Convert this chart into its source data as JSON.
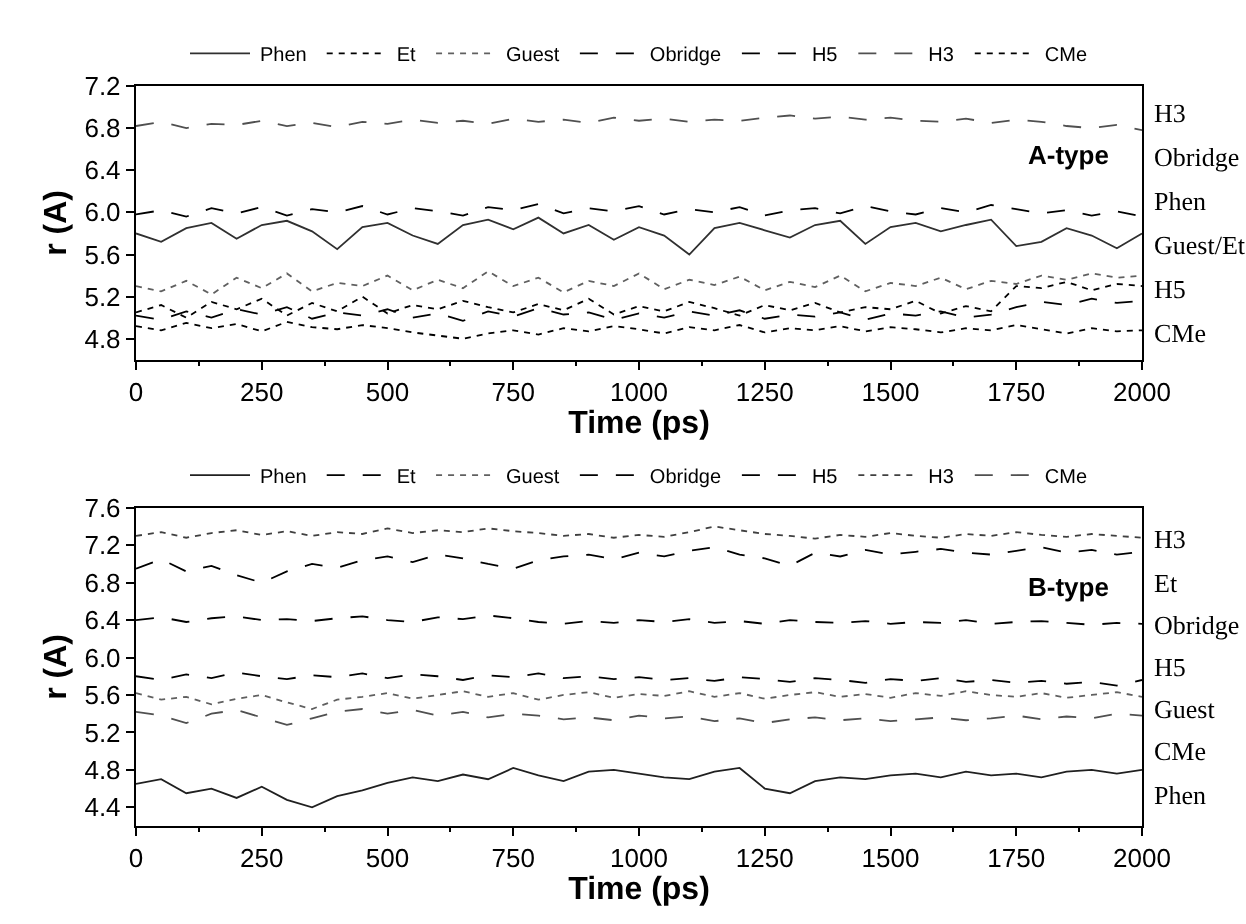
{
  "chart_data": [
    {
      "type": "line",
      "title": "A-type",
      "xlabel": "Time (ps)",
      "ylabel": "r (A)",
      "xlim": [
        0,
        2000
      ],
      "xticks": [
        0,
        250,
        500,
        750,
        1000,
        1250,
        1500,
        1750,
        2000
      ],
      "ylim": [
        4.6,
        7.2
      ],
      "yticks": [
        4.8,
        5.2,
        5.6,
        {
          "value": 6.0,
          "label": "6.0"
        },
        6.4,
        6.8,
        7.2
      ],
      "legend": "top",
      "marker": "none",
      "x": [
        0,
        50,
        100,
        150,
        200,
        250,
        300,
        350,
        400,
        450,
        500,
        550,
        600,
        650,
        700,
        750,
        800,
        850,
        900,
        950,
        1000,
        1050,
        1100,
        1150,
        1200,
        1250,
        1300,
        1350,
        1400,
        1450,
        1500,
        1550,
        1600,
        1650,
        1700,
        1750,
        1800,
        1850,
        1900,
        1950,
        2000
      ],
      "series": [
        {
          "name": "Phen",
          "color": "#303030",
          "line_style": "solid",
          "values": [
            5.8,
            5.72,
            5.85,
            5.9,
            5.75,
            5.88,
            5.92,
            5.82,
            5.65,
            5.86,
            5.9,
            5.78,
            5.7,
            5.88,
            5.93,
            5.84,
            5.95,
            5.8,
            5.88,
            5.74,
            5.86,
            5.78,
            5.6,
            5.85,
            5.9,
            5.83,
            5.76,
            5.88,
            5.92,
            5.7,
            5.86,
            5.9,
            5.82,
            5.88,
            5.93,
            5.68,
            5.72,
            5.85,
            5.78,
            5.66,
            5.8
          ]
        },
        {
          "name": "Et",
          "color": "#000000",
          "line_style": "dotted",
          "values": [
            5.05,
            5.12,
            5.0,
            5.15,
            5.08,
            5.18,
            5.02,
            5.14,
            5.06,
            5.2,
            5.04,
            5.12,
            5.08,
            5.16,
            5.1,
            5.05,
            5.13,
            5.07,
            5.18,
            5.03,
            5.11,
            5.06,
            5.15,
            5.09,
            5.02,
            5.12,
            5.07,
            5.14,
            5.05,
            5.1,
            5.08,
            5.16,
            5.04,
            5.11,
            5.06,
            5.3,
            5.28,
            5.34,
            5.26,
            5.32,
            5.3
          ]
        },
        {
          "name": "Guest",
          "color": "#606060",
          "line_style": "dotted",
          "values": [
            5.3,
            5.25,
            5.35,
            5.22,
            5.38,
            5.28,
            5.42,
            5.25,
            5.33,
            5.3,
            5.4,
            5.26,
            5.36,
            5.28,
            5.44,
            5.3,
            5.38,
            5.24,
            5.35,
            5.3,
            5.42,
            5.27,
            5.36,
            5.31,
            5.39,
            5.26,
            5.34,
            5.29,
            5.4,
            5.25,
            5.33,
            5.3,
            5.38,
            5.27,
            5.35,
            5.32,
            5.4,
            5.36,
            5.42,
            5.38,
            5.4
          ]
        },
        {
          "name": "Obridge",
          "color": "#000000",
          "line_style": "dashed",
          "values": [
            5.98,
            6.02,
            5.96,
            6.04,
            5.99,
            6.05,
            5.97,
            6.03,
            6.0,
            6.06,
            5.98,
            6.04,
            6.01,
            5.97,
            6.05,
            6.02,
            6.08,
            5.99,
            6.04,
            6.01,
            6.06,
            5.98,
            6.03,
            6.0,
            6.05,
            5.97,
            6.02,
            6.04,
            5.99,
            6.06,
            6.01,
            5.98,
            6.04,
            6.0,
            6.07,
            6.03,
            5.99,
            6.02,
            5.97,
            6.01,
            5.96
          ]
        },
        {
          "name": "H5",
          "color": "#000000",
          "line_style": "dashed",
          "values": [
            5.02,
            4.98,
            5.06,
            5.0,
            5.08,
            5.03,
            5.1,
            4.99,
            5.05,
            5.02,
            5.08,
            5.0,
            5.04,
            4.97,
            5.06,
            5.01,
            5.09,
            5.03,
            5.05,
            4.98,
            5.04,
            5.0,
            5.06,
            5.02,
            5.07,
            4.99,
            5.03,
            5.01,
            5.05,
            4.98,
            5.04,
            5.02,
            5.06,
            5.0,
            5.03,
            5.1,
            5.15,
            5.12,
            5.18,
            5.14,
            5.16
          ]
        },
        {
          "name": "H3",
          "color": "#505050",
          "line_style": "dashed",
          "values": [
            6.82,
            6.86,
            6.8,
            6.84,
            6.83,
            6.87,
            6.82,
            6.85,
            6.81,
            6.86,
            6.84,
            6.88,
            6.85,
            6.87,
            6.84,
            6.89,
            6.86,
            6.88,
            6.85,
            6.9,
            6.87,
            6.89,
            6.86,
            6.88,
            6.87,
            6.9,
            6.92,
            6.89,
            6.91,
            6.88,
            6.9,
            6.87,
            6.86,
            6.89,
            6.85,
            6.88,
            6.86,
            6.82,
            6.8,
            6.83,
            6.78
          ]
        },
        {
          "name": "CMe",
          "color": "#000000",
          "line_style": "dotted",
          "values": [
            4.92,
            4.88,
            4.95,
            4.9,
            4.94,
            4.87,
            4.96,
            4.91,
            4.89,
            4.93,
            4.9,
            4.86,
            4.83,
            4.8,
            4.85,
            4.88,
            4.84,
            4.9,
            4.87,
            4.92,
            4.89,
            4.85,
            4.91,
            4.88,
            4.93,
            4.86,
            4.9,
            4.88,
            4.92,
            4.87,
            4.91,
            4.89,
            4.86,
            4.9,
            4.88,
            4.93,
            4.89,
            4.85,
            4.9,
            4.87,
            4.88
          ]
        }
      ],
      "annotations": [
        "H3",
        "Obridge",
        "Phen",
        "Guest/Et",
        "H5",
        "CMe"
      ]
    },
    {
      "type": "line",
      "title": "B-type",
      "xlabel": "Time (ps)",
      "ylabel": "r (A)",
      "xlim": [
        0,
        2000
      ],
      "xticks": [
        0,
        250,
        500,
        750,
        1000,
        1250,
        1500,
        1750,
        2000
      ],
      "ylim": [
        4.2,
        7.6
      ],
      "yticks": [
        4.4,
        4.8,
        5.2,
        5.6,
        {
          "value": 6.0,
          "label": "6.0"
        },
        6.4,
        6.8,
        7.2,
        7.6
      ],
      "legend": "top",
      "marker": "none",
      "x": [
        0,
        50,
        100,
        150,
        200,
        250,
        300,
        350,
        400,
        450,
        500,
        550,
        600,
        650,
        700,
        750,
        800,
        850,
        900,
        950,
        1000,
        1050,
        1100,
        1150,
        1200,
        1250,
        1300,
        1350,
        1400,
        1450,
        1500,
        1550,
        1600,
        1650,
        1700,
        1750,
        1800,
        1850,
        1900,
        1950,
        2000
      ],
      "series": [
        {
          "name": "Phen",
          "color": "#202020",
          "line_style": "solid",
          "values": [
            4.65,
            4.7,
            4.55,
            4.6,
            4.5,
            4.62,
            4.48,
            4.4,
            4.52,
            4.58,
            4.66,
            4.72,
            4.68,
            4.75,
            4.7,
            4.82,
            4.74,
            4.68,
            4.78,
            4.8,
            4.76,
            4.72,
            4.7,
            4.78,
            4.82,
            4.6,
            4.55,
            4.68,
            4.72,
            4.7,
            4.74,
            4.76,
            4.72,
            4.78,
            4.74,
            4.76,
            4.72,
            4.78,
            4.8,
            4.76,
            4.8
          ]
        },
        {
          "name": "Et",
          "color": "#000000",
          "line_style": "dashed",
          "values": [
            6.95,
            7.05,
            6.92,
            6.98,
            6.88,
            6.8,
            6.92,
            7.0,
            6.96,
            7.04,
            7.08,
            7.02,
            7.1,
            7.06,
            7.0,
            6.95,
            7.04,
            7.08,
            7.1,
            7.05,
            7.12,
            7.08,
            7.14,
            7.18,
            7.1,
            7.06,
            6.98,
            7.12,
            7.08,
            7.15,
            7.1,
            7.13,
            7.16,
            7.12,
            7.1,
            7.14,
            7.18,
            7.12,
            7.15,
            7.1,
            7.13
          ]
        },
        {
          "name": "Guest",
          "color": "#606060",
          "line_style": "dotted",
          "values": [
            5.62,
            5.55,
            5.58,
            5.5,
            5.56,
            5.6,
            5.52,
            5.45,
            5.55,
            5.58,
            5.62,
            5.56,
            5.6,
            5.64,
            5.58,
            5.62,
            5.55,
            5.6,
            5.63,
            5.57,
            5.61,
            5.59,
            5.64,
            5.58,
            5.62,
            5.56,
            5.6,
            5.63,
            5.58,
            5.61,
            5.57,
            5.62,
            5.59,
            5.64,
            5.6,
            5.58,
            5.62,
            5.57,
            5.6,
            5.63,
            5.58
          ]
        },
        {
          "name": "Obridge",
          "color": "#000000",
          "line_style": "dashed",
          "values": [
            6.4,
            6.43,
            6.38,
            6.42,
            6.44,
            6.4,
            6.41,
            6.39,
            6.42,
            6.44,
            6.4,
            6.38,
            6.43,
            6.41,
            6.45,
            6.42,
            6.38,
            6.36,
            6.39,
            6.37,
            6.4,
            6.38,
            6.41,
            6.37,
            6.39,
            6.36,
            6.4,
            6.38,
            6.37,
            6.39,
            6.36,
            6.38,
            6.37,
            6.4,
            6.36,
            6.38,
            6.39,
            6.37,
            6.35,
            6.37,
            6.36
          ]
        },
        {
          "name": "H5",
          "color": "#000000",
          "line_style": "dashed",
          "values": [
            5.8,
            5.76,
            5.82,
            5.78,
            5.84,
            5.8,
            5.77,
            5.81,
            5.79,
            5.83,
            5.78,
            5.82,
            5.8,
            5.76,
            5.81,
            5.79,
            5.83,
            5.78,
            5.8,
            5.77,
            5.79,
            5.76,
            5.78,
            5.75,
            5.79,
            5.77,
            5.74,
            5.78,
            5.76,
            5.73,
            5.77,
            5.75,
            5.78,
            5.74,
            5.76,
            5.73,
            5.75,
            5.72,
            5.74,
            5.7,
            5.76
          ]
        },
        {
          "name": "H3",
          "color": "#404040",
          "line_style": "dotted",
          "values": [
            7.3,
            7.34,
            7.28,
            7.33,
            7.36,
            7.31,
            7.35,
            7.3,
            7.34,
            7.32,
            7.38,
            7.33,
            7.36,
            7.34,
            7.38,
            7.35,
            7.33,
            7.3,
            7.32,
            7.28,
            7.31,
            7.29,
            7.34,
            7.4,
            7.36,
            7.32,
            7.3,
            7.27,
            7.31,
            7.29,
            7.33,
            7.3,
            7.28,
            7.32,
            7.3,
            7.34,
            7.31,
            7.29,
            7.32,
            7.3,
            7.28
          ]
        },
        {
          "name": "CMe",
          "color": "#505050",
          "line_style": "dashed",
          "values": [
            5.42,
            5.38,
            5.3,
            5.4,
            5.44,
            5.36,
            5.28,
            5.35,
            5.42,
            5.45,
            5.4,
            5.44,
            5.38,
            5.42,
            5.36,
            5.4,
            5.38,
            5.34,
            5.36,
            5.33,
            5.38,
            5.35,
            5.37,
            5.32,
            5.35,
            5.3,
            5.34,
            5.36,
            5.33,
            5.35,
            5.32,
            5.34,
            5.36,
            5.33,
            5.35,
            5.38,
            5.34,
            5.37,
            5.35,
            5.4,
            5.38
          ]
        }
      ],
      "annotations": [
        "H3",
        "Et",
        "Obridge",
        "H5",
        "Guest",
        "CMe",
        "Phen"
      ]
    }
  ]
}
